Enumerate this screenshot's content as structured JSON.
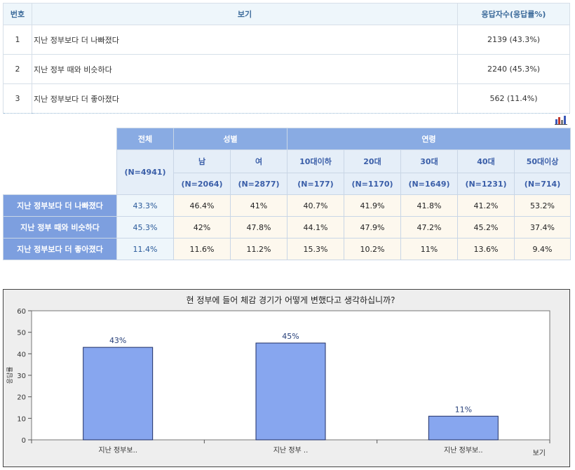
{
  "result_table": {
    "headers": [
      "번호",
      "보기",
      "응답자수(응답률%)"
    ],
    "rows": [
      {
        "no": "1",
        "option": "지난 정부보다 더 나빠졌다",
        "count": "2139 (43.3%)"
      },
      {
        "no": "2",
        "option": "지난 정부 때와 비슷하다",
        "count": "2240 (45.3%)"
      },
      {
        "no": "3",
        "option": "지난 정부보다 더 좋아졌다",
        "count": "562 (11.4%)"
      }
    ]
  },
  "cross_table": {
    "total_label": "전체",
    "total_n": "(N=4941)",
    "gender_label": "성별",
    "age_label": "연령",
    "subgroups": [
      {
        "label": "남",
        "n": "(N=2064)"
      },
      {
        "label": "여",
        "n": "(N=2877)"
      },
      {
        "label": "10대이하",
        "n": "(N=177)"
      },
      {
        "label": "20대",
        "n": "(N=1170)"
      },
      {
        "label": "30대",
        "n": "(N=1649)"
      },
      {
        "label": "40대",
        "n": "(N=1231)"
      },
      {
        "label": "50대이상",
        "n": "(N=714)"
      }
    ],
    "rows": [
      {
        "label": "지난 정부보다 더 나빠졌다",
        "total": "43.3%",
        "values": [
          "46.4%",
          "41%",
          "40.7%",
          "41.9%",
          "41.8%",
          "41.2%",
          "53.2%"
        ]
      },
      {
        "label": "지난 정부 때와 비슷하다",
        "total": "45.3%",
        "values": [
          "42%",
          "47.8%",
          "44.1%",
          "47.9%",
          "47.2%",
          "45.2%",
          "37.4%"
        ]
      },
      {
        "label": "지난 정부보다 더 좋아졌다",
        "total": "11.4%",
        "values": [
          "11.6%",
          "11.2%",
          "15.3%",
          "10.2%",
          "11%",
          "13.6%",
          "9.4%"
        ]
      }
    ]
  },
  "icons": {
    "chart_toggle": "bar-chart-icon"
  },
  "chart_data": {
    "type": "bar",
    "title": "현 정부에 들어 체감 경기가 어떻게 변했다고 생각하십니까?",
    "xlabel": "보기",
    "ylabel": "응답률",
    "categories": [
      "지난 정부보..",
      "지난 정부 ..",
      "지난 정부보.."
    ],
    "values": [
      43,
      45,
      11
    ],
    "data_labels": [
      "43%",
      "45%",
      "11%"
    ],
    "ylim": [
      0,
      60
    ],
    "yticks": [
      0,
      10,
      20,
      30,
      40,
      50,
      60
    ],
    "grid": false,
    "colors": {
      "bar": "#87a6ef",
      "bar_border": "#1f2f66",
      "label": "#27407a",
      "plot_bg": "#ffffff",
      "frame_bg": "#eeeeee"
    }
  }
}
